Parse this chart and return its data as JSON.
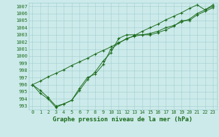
{
  "title": "Graphe pression niveau de la mer (hPa)",
  "xlabel_hours": [
    0,
    1,
    2,
    3,
    4,
    5,
    6,
    7,
    8,
    9,
    10,
    11,
    12,
    13,
    14,
    15,
    16,
    17,
    18,
    19,
    20,
    21,
    22,
    23
  ],
  "line_straight": [
    996.0,
    996.5,
    997.1,
    997.6,
    998.1,
    998.7,
    999.2,
    999.7,
    1000.3,
    1000.8,
    1001.3,
    1001.9,
    1002.4,
    1002.9,
    1003.5,
    1004.0,
    1004.5,
    1005.1,
    1005.6,
    1006.1,
    1006.7,
    1007.2,
    1006.5,
    1007.2
  ],
  "line_wavy1": [
    996.0,
    995.2,
    994.2,
    993.0,
    993.3,
    993.8,
    995.2,
    996.7,
    997.8,
    999.3,
    1000.5,
    1002.5,
    1003.0,
    1003.0,
    1003.0,
    1003.2,
    1003.5,
    1004.0,
    1004.3,
    1004.8,
    1005.2,
    1006.0,
    1006.5,
    1007.0
  ],
  "line_wavy2": [
    996.0,
    994.8,
    994.0,
    992.8,
    993.3,
    993.8,
    995.5,
    997.0,
    997.5,
    998.8,
    1001.0,
    1001.8,
    1002.5,
    1002.8,
    1003.0,
    1003.0,
    1003.3,
    1003.7,
    1004.2,
    1005.0,
    1005.0,
    1005.8,
    1006.3,
    1006.8
  ],
  "bg_color": "#cceaea",
  "grid_color": "#a0cccc",
  "line_color": "#1a6b1a",
  "marker_color": "#1a6b1a",
  "text_color": "#1a6b1a",
  "ylim_min": 992.5,
  "ylim_max": 1007.5,
  "yticks": [
    993,
    994,
    995,
    996,
    997,
    998,
    999,
    1000,
    1001,
    1002,
    1003,
    1004,
    1005,
    1006,
    1007
  ],
  "xticks": [
    0,
    1,
    2,
    3,
    4,
    5,
    6,
    7,
    8,
    9,
    10,
    11,
    12,
    13,
    14,
    15,
    16,
    17,
    18,
    19,
    20,
    21,
    22,
    23
  ],
  "title_fontsize": 6.5,
  "tick_fontsize": 5.0,
  "figwidth": 3.2,
  "figheight": 2.0,
  "dpi": 100
}
